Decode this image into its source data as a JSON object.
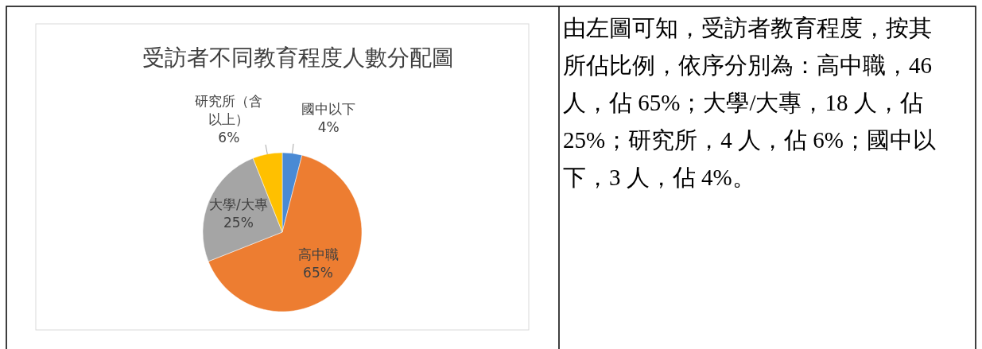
{
  "chart_data": {
    "type": "pie",
    "title": "受訪者不同教育程度人數分配圖",
    "categories": [
      "國中以下",
      "高中職",
      "大學/大專",
      "研究所（含以上）"
    ],
    "values": [
      4,
      65,
      25,
      6
    ],
    "colors": [
      "#4a8ad4",
      "#ed7d31",
      "#a5a5a5",
      "#ffc000"
    ],
    "value_labels": [
      "4%",
      "65%",
      "25%",
      "6%"
    ],
    "annotations": [
      "由左圖可知，受訪者教育程度，按其所佔比例，依序分別為：高中職，46 人，佔 65%；大學/大專，18 人，佔 25%；研究所，4 人，佔 6%；國中以下，3 人，佔 4%。"
    ]
  }
}
